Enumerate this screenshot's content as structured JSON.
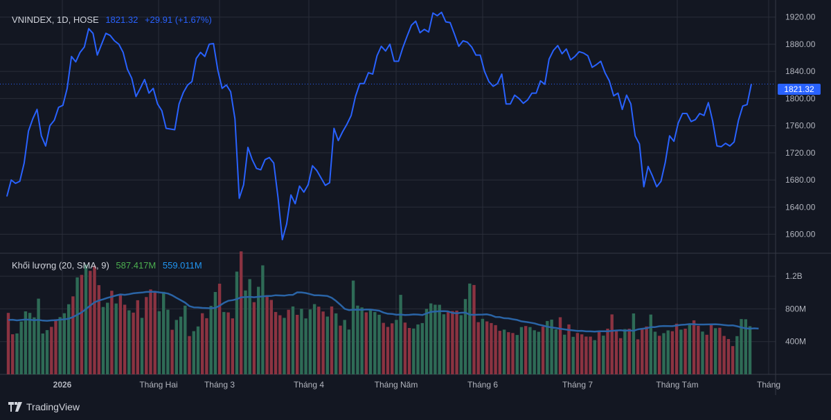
{
  "legend": {
    "symbol": "VNINDEX, 1D, HOSE",
    "last": "1821.32",
    "change": "+29.91 (+1.67%)"
  },
  "volume_legend": {
    "label": "Khối lượng (20, SMA, 9)",
    "volume": "587.417M",
    "sma": "559.011M"
  },
  "price_tag": "1821.32",
  "brand": "TradingView",
  "colors": {
    "background": "#131722",
    "grid": "#2a2e39",
    "line": "#2962ff",
    "up_volume": "#2e6b56",
    "down_volume": "#8b3341",
    "sma": "#2a64a6"
  },
  "chart_data": [
    {
      "type": "line",
      "title": "VNINDEX, 1D, HOSE",
      "y_ticks": [
        1600,
        1640,
        1680,
        1720,
        1760,
        1800,
        1840,
        1880,
        1920
      ],
      "y_tick_labels": [
        "1600.00",
        "1640.00",
        "1680.00",
        "1720.00",
        "1760.00",
        "1800.00",
        "1840.00",
        "1880.00",
        "1920.00"
      ],
      "x_tick_labels": [
        "2026",
        "Tháng Hai",
        "Tháng 3",
        "Tháng 4",
        "Tháng Năm",
        "Tháng 6",
        "Tháng 7",
        "Tháng Tám",
        "Tháng"
      ],
      "ylim": [
        1572,
        1935
      ],
      "grid": true,
      "series": [
        {
          "values": [
            1656,
            1680,
            1675,
            1678,
            1705,
            1752,
            1770,
            1784,
            1745,
            1730,
            1760,
            1768,
            1787,
            1790,
            1815,
            1862,
            1854,
            1868,
            1876,
            1903,
            1896,
            1864,
            1880,
            1896,
            1893,
            1885,
            1880,
            1868,
            1843,
            1830,
            1803,
            1815,
            1828,
            1808,
            1815,
            1792,
            1782,
            1756,
            1755,
            1754,
            1792,
            1809,
            1820,
            1825,
            1859,
            1868,
            1862,
            1880,
            1881,
            1842,
            1815,
            1820,
            1810,
            1770,
            1653,
            1673,
            1728,
            1710,
            1697,
            1695,
            1710,
            1713,
            1705,
            1654,
            1592,
            1615,
            1658,
            1645,
            1671,
            1662,
            1673,
            1701,
            1694,
            1683,
            1672,
            1676,
            1756,
            1738,
            1751,
            1762,
            1775,
            1803,
            1822,
            1822,
            1838,
            1836,
            1863,
            1877,
            1870,
            1880,
            1855,
            1855,
            1875,
            1892,
            1908,
            1914,
            1897,
            1902,
            1898,
            1926,
            1922,
            1927,
            1913,
            1912,
            1895,
            1877,
            1885,
            1883,
            1876,
            1864,
            1864,
            1840,
            1825,
            1818,
            1822,
            1836,
            1792,
            1792,
            1805,
            1800,
            1793,
            1798,
            1808,
            1808,
            1826,
            1821,
            1858,
            1871,
            1878,
            1866,
            1873,
            1857,
            1862,
            1869,
            1867,
            1863,
            1846,
            1850,
            1855,
            1838,
            1826,
            1804,
            1808,
            1784,
            1805,
            1792,
            1745,
            1733,
            1670,
            1700,
            1686,
            1670,
            1678,
            1706,
            1745,
            1737,
            1764,
            1778,
            1778,
            1766,
            1769,
            1778,
            1775,
            1794,
            1767,
            1730,
            1729,
            1734,
            1730,
            1736,
            1768,
            1789,
            1791,
            1821.32
          ]
        }
      ]
    },
    {
      "type": "bar",
      "title": "Khối lượng (20, SMA, 9)",
      "y_ticks": [
        400,
        800,
        1200
      ],
      "y_tick_labels": [
        "400M",
        "800M",
        "1.2B"
      ],
      "ylim": [
        0,
        1480
      ],
      "series": [
        {
          "name": "Khối lượng",
          "values": [
            751,
            490,
            500,
            645,
            770,
            751,
            696,
            925,
            499,
            540,
            580,
            673,
            699,
            747,
            857,
            953,
            1185,
            1215,
            1340,
            1265,
            1325,
            1090,
            823,
            875,
            1022,
            866,
            982,
            851,
            782,
            754,
            906,
            690,
            945,
            1038,
            1003,
            771,
            1008,
            790,
            545,
            665,
            705,
            840,
            468,
            528,
            585,
            747,
            686,
            837,
            1006,
            1108,
            762,
            757,
            684,
            1256,
            1503,
            1025,
            1164,
            882,
            1070,
            1332,
            968,
            909,
            762,
            722,
            690,
            789,
            830,
            727,
            801,
            683,
            793,
            858,
            827,
            768,
            706,
            830,
            745,
            595,
            665,
            547,
            1146,
            840,
            818,
            758,
            798,
            761,
            728,
            629,
            579,
            623,
            666,
            972,
            633,
            567,
            560,
            610,
            627,
            800,
            867,
            851,
            850,
            734,
            760,
            774,
            779,
            723,
            920,
            1110,
            1092,
            638,
            678,
            647,
            627,
            601,
            532,
            546,
            515,
            505,
            481,
            578,
            590,
            578,
            539,
            520,
            583,
            652,
            669,
            550,
            698,
            485,
            610,
            458,
            505,
            489,
            462,
            461,
            418,
            532,
            473,
            558,
            732,
            545,
            442,
            553,
            557,
            744,
            428,
            564,
            585,
            731,
            521,
            471,
            503,
            537,
            527,
            619,
            546,
            558,
            615,
            660,
            593,
            523,
            484,
            605,
            564,
            569,
            469,
            431,
            345,
            467,
            676,
            673,
            587.417
          ],
          "up": [
            0,
            0,
            1,
            1,
            1,
            1,
            1,
            1,
            1,
            1,
            0,
            0,
            1,
            1,
            1,
            0,
            1,
            0,
            1,
            0,
            0,
            0,
            1,
            1,
            0,
            1,
            0,
            0,
            1,
            0,
            0,
            1,
            0,
            0,
            0,
            1,
            1,
            1,
            0,
            1,
            1,
            1,
            0,
            1,
            1,
            0,
            0,
            1,
            1,
            0,
            1,
            0,
            0,
            1,
            0,
            1,
            1,
            0,
            1,
            1,
            0,
            0,
            0,
            0,
            1,
            0,
            1,
            0,
            1,
            1,
            1,
            1,
            0,
            0,
            1,
            0,
            1,
            0,
            1,
            1,
            1,
            1,
            1,
            0,
            1,
            1,
            1,
            0,
            0,
            0,
            1,
            1,
            0,
            0,
            1,
            1,
            1,
            1,
            1,
            1,
            1,
            1,
            0,
            0,
            0,
            1,
            1,
            1,
            0,
            0,
            1,
            0,
            0,
            0,
            0,
            1,
            0,
            0,
            1,
            1,
            0,
            1,
            1,
            1,
            0,
            1,
            1,
            1,
            0,
            1,
            0,
            1,
            0,
            0,
            0,
            0,
            1,
            0,
            1,
            0,
            0,
            0,
            0,
            1,
            0,
            1,
            0,
            0,
            0,
            1,
            1,
            0,
            1,
            1,
            0,
            0,
            1,
            0,
            1,
            0,
            0,
            1,
            0,
            0,
            1,
            0,
            0,
            0,
            0,
            1,
            1,
            1,
            1
          ]
        },
        {
          "name": "SMA 9",
          "type": "line",
          "values": [
            665,
            667,
            660,
            665,
            670,
            667,
            662,
            666,
            657,
            655,
            660,
            662,
            668,
            672,
            680,
            700,
            728,
            757,
            798,
            840,
            880,
            902,
            917,
            935,
            949,
            964,
            977,
            972,
            979,
            990,
            996,
            1000,
            1007,
            1009,
            1010,
            1002,
            996,
            988,
            966,
            935,
            906,
            876,
            834,
            819,
            817,
            812,
            810,
            808,
            812,
            839,
            873,
            899,
            907,
            919,
            942,
            944,
            947,
            942,
            948,
            952,
            957,
            958,
            967,
            964,
            962,
            970,
            972,
            1002,
            1001,
            994,
            980,
            966,
            966,
            962,
            957,
            935,
            897,
            851,
            801,
            785,
            790,
            791,
            789,
            793,
            792,
            784,
            778,
            755,
            741,
            738,
            728,
            731,
            726,
            727,
            732,
            731,
            725,
            744,
            763,
            768,
            771,
            773,
            770,
            751,
            747,
            753,
            755,
            729,
            727,
            730,
            731,
            733,
            722,
            701,
            699,
            686,
            684,
            673,
            665,
            648,
            641,
            633,
            623,
            607,
            596,
            582,
            573,
            567,
            557,
            550,
            542,
            537,
            531,
            532,
            525,
            525,
            523,
            527,
            527,
            527,
            532,
            536,
            539,
            533,
            537,
            532,
            550,
            557,
            563,
            577,
            578,
            588,
            591,
            590,
            589,
            597,
            605,
            608,
            614,
            612,
            609,
            609,
            610,
            611,
            612,
            609,
            602,
            597,
            599,
            588,
            573,
            562,
            558,
            562,
            559.011
          ]
        }
      ]
    }
  ]
}
